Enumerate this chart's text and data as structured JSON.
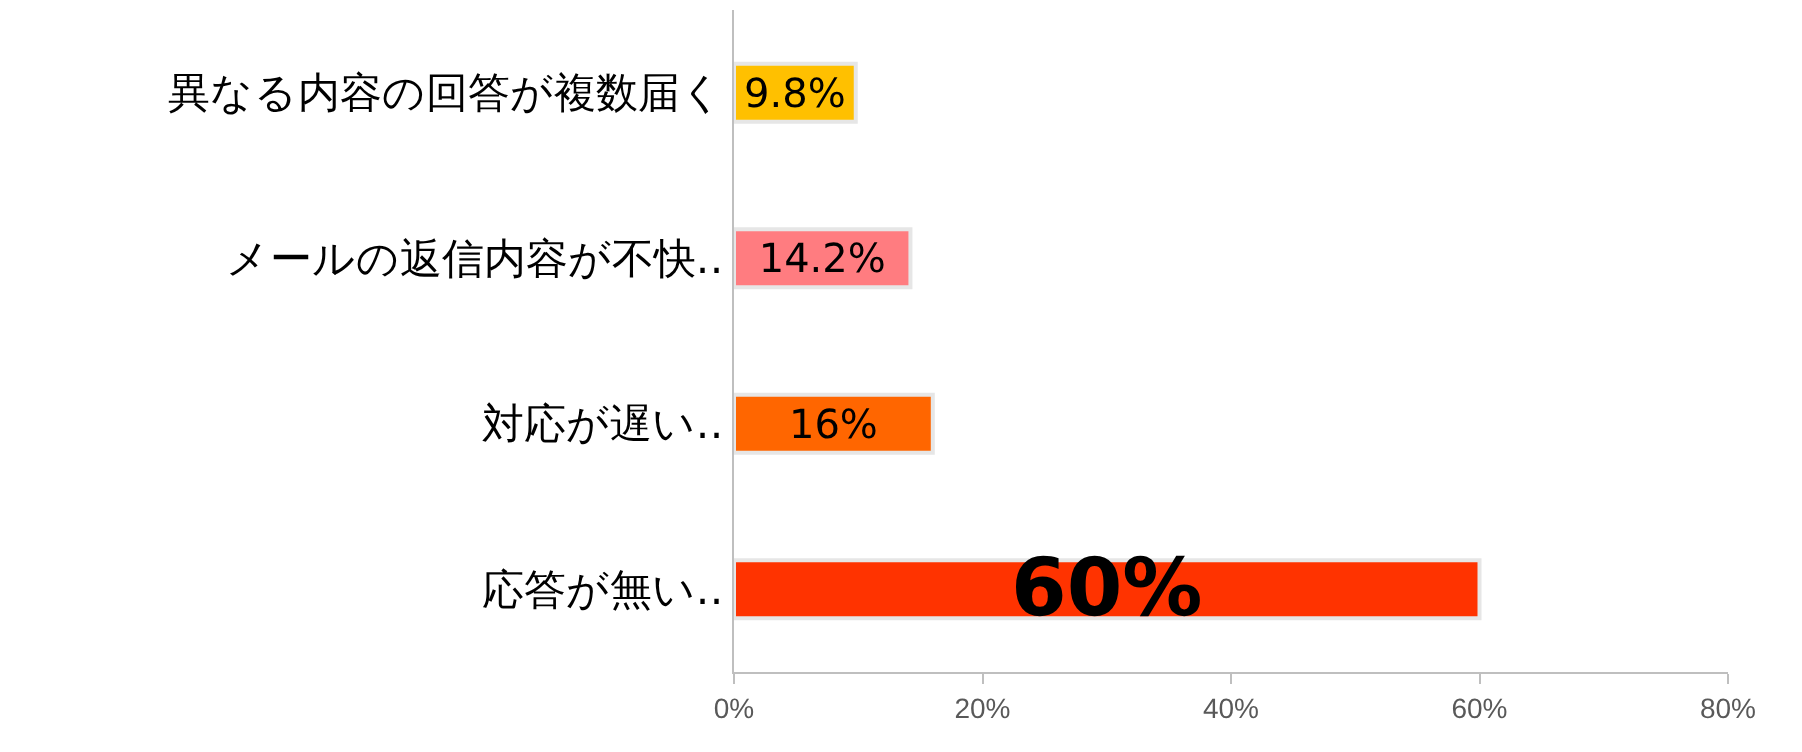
{
  "chart_data": {
    "type": "bar",
    "orientation": "horizontal",
    "categories": [
      "異なる内容の回答が複数届く",
      "メールの返信内容が不快‥",
      "対応が遅い‥",
      "応答が無い‥"
    ],
    "values": [
      9.8,
      14.2,
      16,
      60
    ],
    "colors": [
      "#ffc000",
      "#ff7c80",
      "#ff6600",
      "#ff3300"
    ],
    "value_labels": [
      "9.8%",
      "14.2%",
      "16%",
      "60%"
    ],
    "xlim": [
      0,
      80
    ],
    "xticks": [
      {
        "value": 0,
        "label": "0%"
      },
      {
        "value": 20,
        "label": "20%"
      },
      {
        "value": 40,
        "label": "40%"
      },
      {
        "value": 60,
        "label": "60%"
      },
      {
        "value": 80,
        "label": "80%"
      }
    ],
    "grid": false
  }
}
